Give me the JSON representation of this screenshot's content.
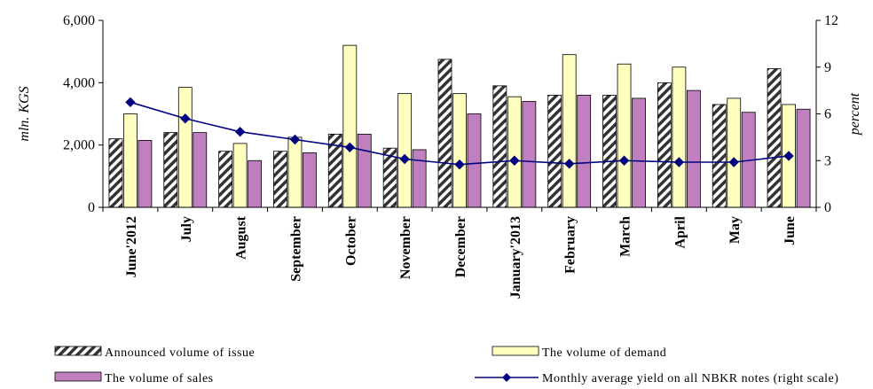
{
  "chart_data": {
    "type": "bar",
    "categories": [
      "June'2012",
      "July",
      "August",
      "September",
      "October",
      "November",
      "December",
      "January'2013",
      "February",
      "March",
      "April",
      "May",
      "June"
    ],
    "series": [
      {
        "name": "Announced volume of issue",
        "kind": "bar",
        "axis": "left",
        "pattern": "hatch",
        "color": "#ffffff",
        "values": [
          2200,
          2400,
          1800,
          1800,
          2350,
          1900,
          4750,
          3900,
          3600,
          3600,
          4000,
          3300,
          4450
        ]
      },
      {
        "name": "The volume of demand",
        "kind": "bar",
        "axis": "left",
        "color": "#ffffc0",
        "values": [
          3000,
          3850,
          2050,
          2250,
          5200,
          3650,
          3650,
          3550,
          4900,
          4600,
          4500,
          3500,
          3300
        ]
      },
      {
        "name": "The volume of sales",
        "kind": "bar",
        "axis": "left",
        "color": "#c080c0",
        "values": [
          2150,
          2400,
          1500,
          1750,
          2350,
          1850,
          3000,
          3400,
          3600,
          3500,
          3750,
          3050,
          3150
        ]
      },
      {
        "name": "Monthly average yield on all NBKR notes (right scale)",
        "kind": "line",
        "axis": "right",
        "color": "#000080",
        "values": [
          6.75,
          5.7,
          4.85,
          4.35,
          3.85,
          3.1,
          2.75,
          3.0,
          2.8,
          3.0,
          2.9,
          2.9,
          3.3
        ]
      }
    ],
    "yleft": {
      "label": "mln. KGS",
      "ylim": [
        0,
        6000
      ],
      "ticks": [
        "0",
        "2,000",
        "4,000",
        "6,000"
      ],
      "tickValues": [
        0,
        2000,
        4000,
        6000
      ]
    },
    "yright": {
      "label": "percent",
      "ylim": [
        0,
        12
      ],
      "ticks": [
        "0",
        "3",
        "6",
        "9",
        "12"
      ],
      "tickValues": [
        0,
        3,
        6,
        9,
        12
      ]
    },
    "grid": false,
    "legend_position": "bottom"
  }
}
